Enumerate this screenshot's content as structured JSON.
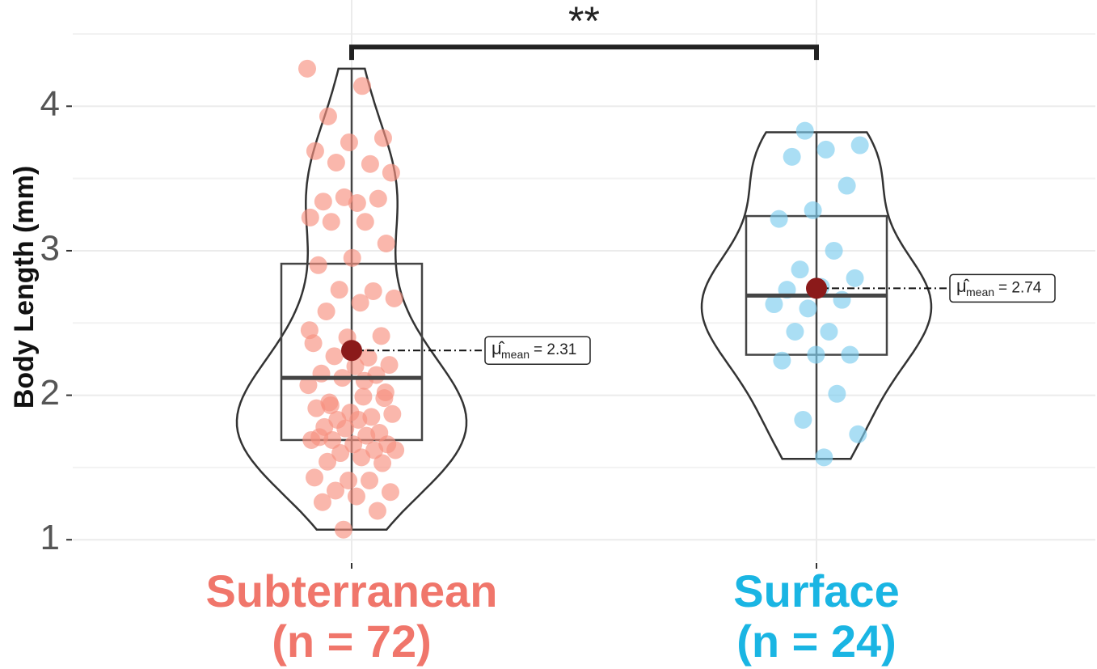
{
  "chart_data": {
    "type": "violin",
    "y_label": "Body Length (mm)",
    "ylim": [
      0.85,
      4.5
    ],
    "yticks": [
      1,
      2,
      3,
      4
    ],
    "y_minor_grid": [
      1.5,
      2.5,
      3.5,
      4.5
    ],
    "grid": true,
    "categories": [
      "Subterranean",
      "Surface"
    ],
    "n_labels": [
      "(n = 72)",
      "(n = 24)"
    ],
    "mean_symbol": "μ̂",
    "mean_subscript": "mean",
    "mean_color": "#8b1a1a",
    "significance": {
      "label": "**",
      "y": 4.41
    },
    "series": [
      {
        "color": "#f0766b",
        "point_color": "#f8907f",
        "values": [
          4.26,
          4.14,
          3.93,
          3.78,
          3.75,
          3.69,
          3.6,
          3.61,
          3.54,
          3.33,
          3.34,
          3.36,
          3.37,
          3.23,
          3.2,
          3.2,
          3.05,
          2.95,
          2.9,
          2.72,
          2.73,
          2.67,
          2.64,
          2.58,
          2.41,
          2.4,
          2.36,
          2.26,
          2.27,
          2.21,
          2.2,
          2.15,
          2.14,
          2.12,
          2.07,
          1.99,
          1.95,
          1.98,
          1.88,
          1.91,
          1.85,
          1.83,
          1.87,
          1.83,
          1.78,
          1.74,
          1.77,
          1.69,
          1.72,
          1.69,
          1.66,
          1.66,
          1.71,
          1.62,
          1.6,
          1.62,
          1.57,
          1.54,
          1.53,
          1.41,
          1.43,
          1.41,
          1.34,
          1.33,
          1.3,
          1.26,
          1.2,
          1.07,
          2.45,
          2.1,
          1.93,
          2.02
        ],
        "box": {
          "min": 1.07,
          "q1": 1.69,
          "median": 2.12,
          "q3": 2.91,
          "max": 4.26
        },
        "mean": 2.31,
        "mean_label": "= 2.31"
      },
      {
        "color": "#1ab5e3",
        "point_color": "#7ccdee",
        "values": [
          3.83,
          3.73,
          3.7,
          3.65,
          3.45,
          3.28,
          3.22,
          3.0,
          2.87,
          2.81,
          2.75,
          2.73,
          2.66,
          2.6,
          2.63,
          2.44,
          2.44,
          2.28,
          2.28,
          2.24,
          2.01,
          1.83,
          1.73,
          1.57
        ],
        "box": {
          "min": 1.56,
          "q1": 2.28,
          "median": 2.69,
          "q3": 3.24,
          "max": 3.82
        },
        "mean": 2.74,
        "mean_label": "= 2.74"
      }
    ]
  }
}
